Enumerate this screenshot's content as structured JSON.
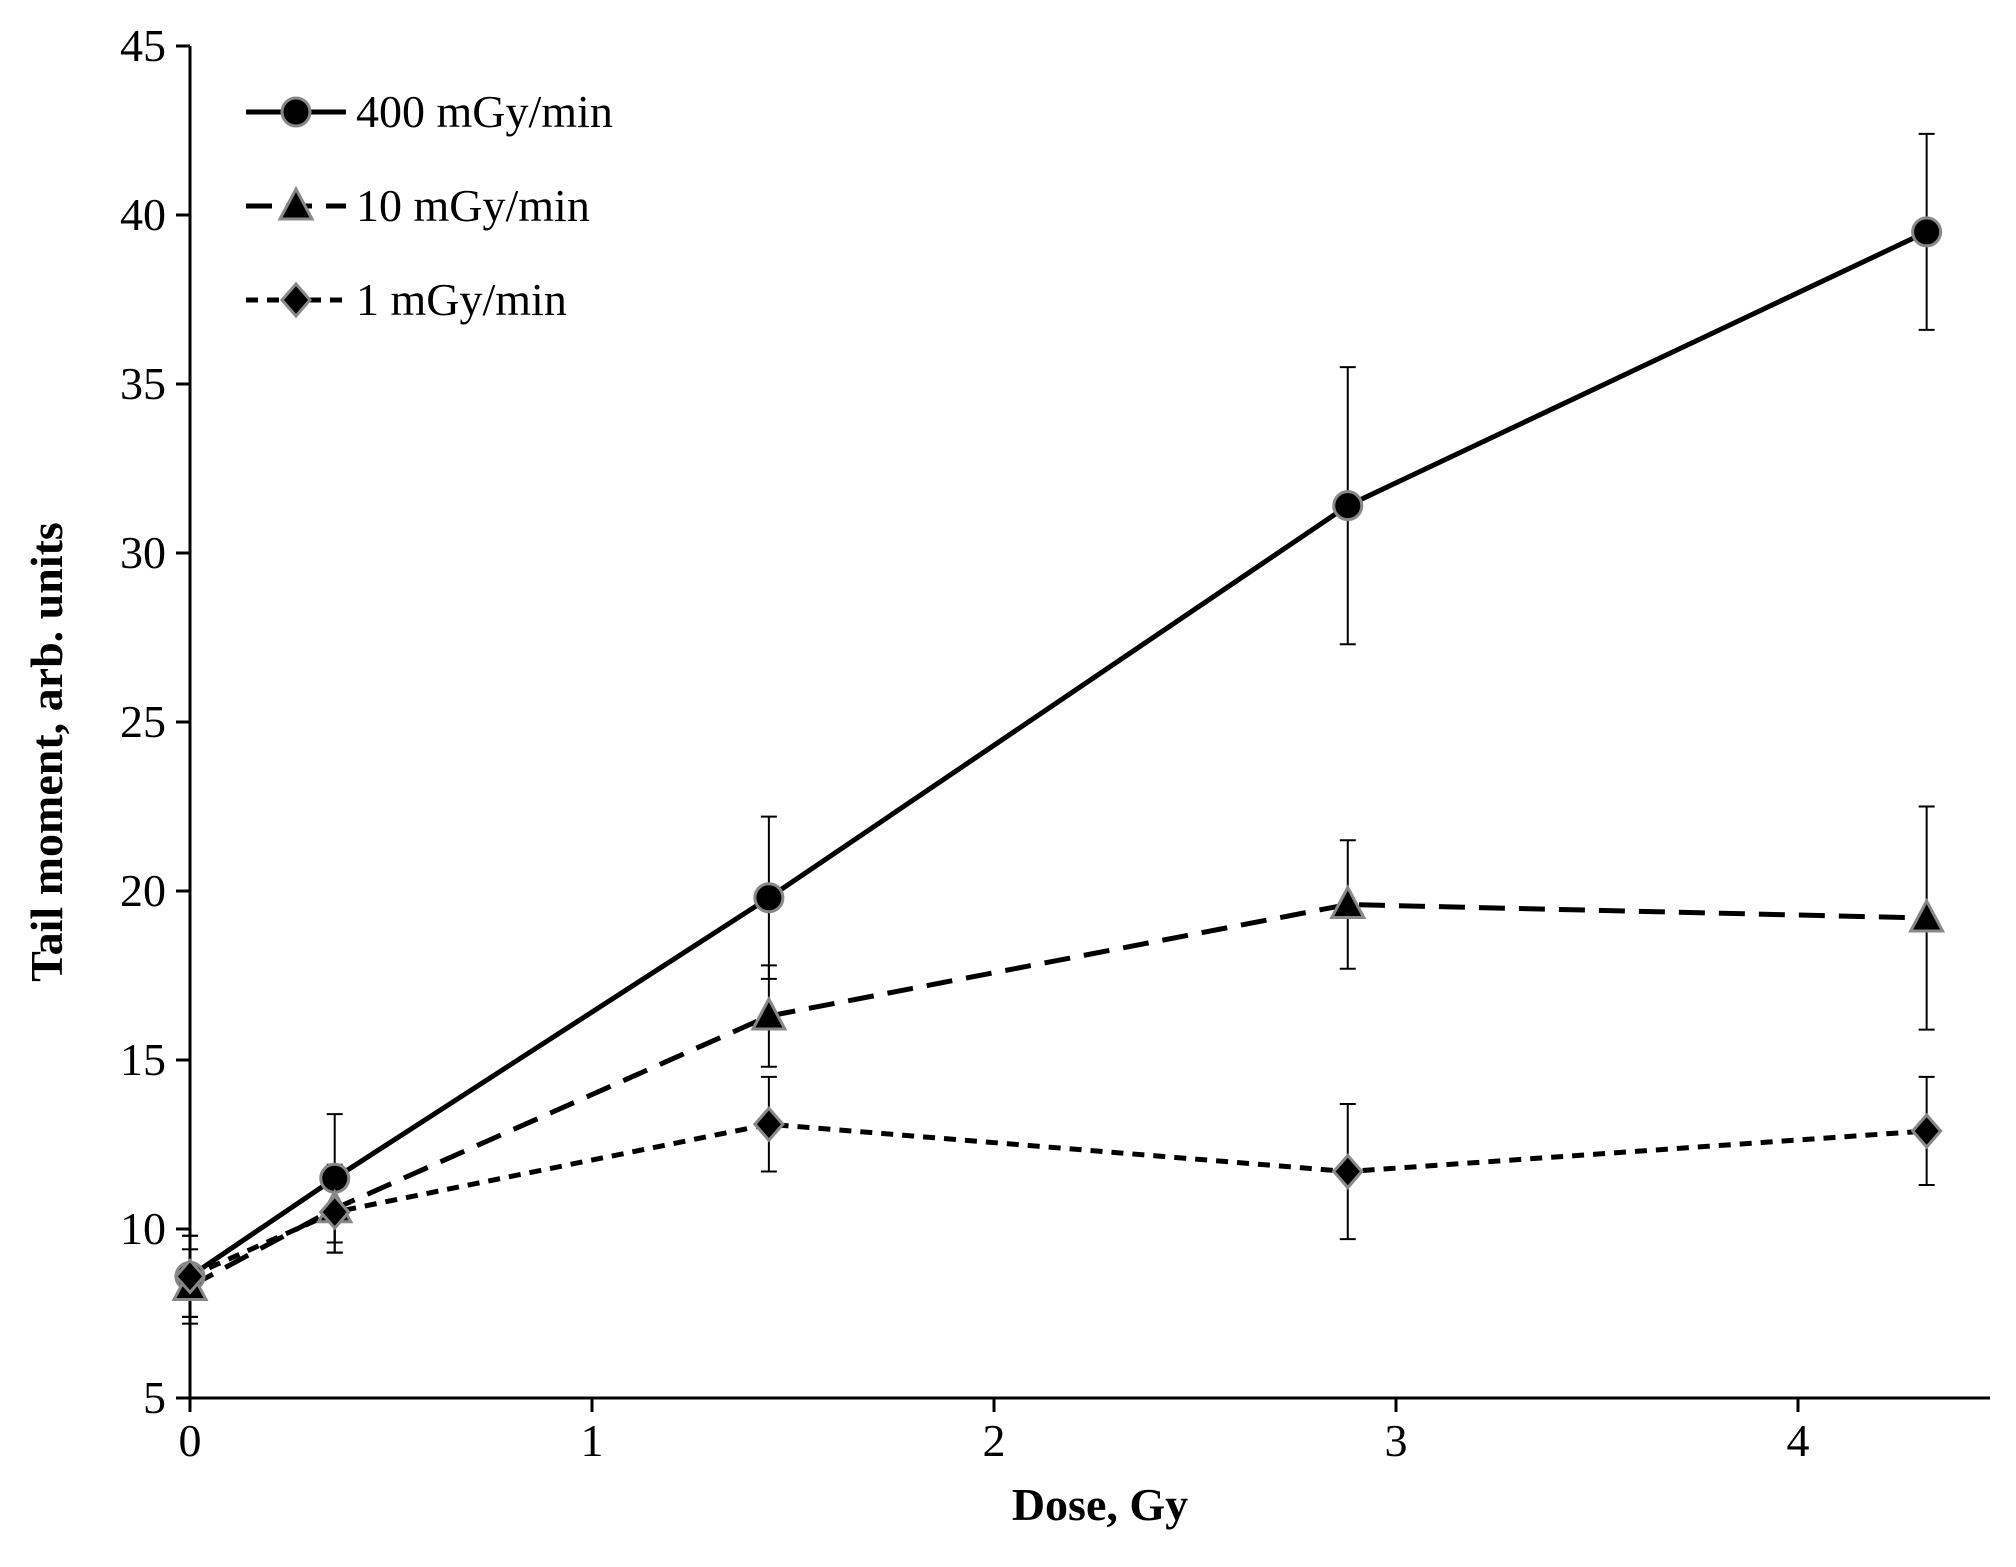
{
  "chart_data": {
    "type": "line",
    "title": "",
    "xlabel": "Dose, Gy",
    "ylabel": "Tail moment,  arb. units",
    "xlim": [
      0,
      4.6
    ],
    "ylim": [
      5,
      45
    ],
    "xticks": [
      0,
      1,
      2,
      3,
      4
    ],
    "yticks": [
      5,
      10,
      15,
      20,
      25,
      30,
      35,
      40,
      45
    ],
    "legend_position": "top-left",
    "series": [
      {
        "name": "400 mGy/min",
        "marker": "circle",
        "line": "solid",
        "x": [
          0,
          0.36,
          1.44,
          2.88,
          4.32
        ],
        "y": [
          8.6,
          11.5,
          19.8,
          31.4,
          39.5
        ],
        "err": [
          1.2,
          1.9,
          2.4,
          4.1,
          2.9
        ]
      },
      {
        "name": "10 mGy/min",
        "marker": "triangle",
        "line": "dashed",
        "x": [
          0,
          0.36,
          1.44,
          2.88,
          4.32
        ],
        "y": [
          8.3,
          10.6,
          16.3,
          19.6,
          19.2
        ],
        "err": [
          1.1,
          1.3,
          1.5,
          1.9,
          3.3
        ]
      },
      {
        "name": "1 mGy/min",
        "marker": "diamond",
        "line": "dotted",
        "x": [
          0,
          0.36,
          1.44,
          2.88,
          4.32
        ],
        "y": [
          8.6,
          10.5,
          13.1,
          11.7,
          12.9
        ],
        "err": [
          1.2,
          1.2,
          1.4,
          2.0,
          1.6
        ]
      }
    ]
  }
}
